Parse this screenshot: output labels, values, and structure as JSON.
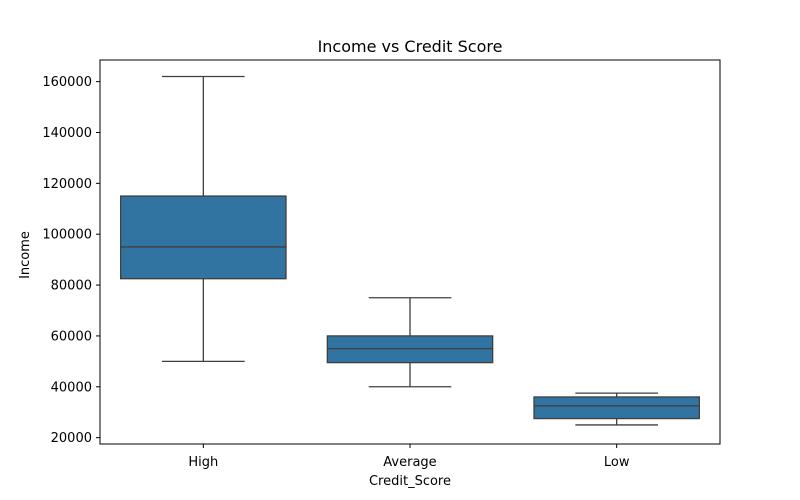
{
  "chart_data": {
    "type": "box",
    "title": "Income vs Credit Score",
    "xlabel": "Credit_Score",
    "ylabel": "Income",
    "categories": [
      "High",
      "Average",
      "Low"
    ],
    "boxes": [
      {
        "category": "High",
        "whisker_low": 50000,
        "q1": 82500,
        "median": 95000,
        "q3": 115000,
        "whisker_high": 162000
      },
      {
        "category": "Average",
        "whisker_low": 40000,
        "q1": 49500,
        "median": 55000,
        "q3": 60000,
        "whisker_high": 75000
      },
      {
        "category": "Low",
        "whisker_low": 25000,
        "q1": 27500,
        "median": 32500,
        "q3": 36000,
        "whisker_high": 37500
      }
    ],
    "yticks": [
      20000,
      40000,
      60000,
      80000,
      100000,
      120000,
      140000,
      160000
    ],
    "ytick_labels": [
      "20000",
      "40000",
      "60000",
      "80000",
      "100000",
      "120000",
      "140000",
      "160000"
    ],
    "ylim": [
      17500,
      168500
    ],
    "grid": false,
    "box_color": "#3274a1",
    "line_color": "#3f3f3f"
  }
}
